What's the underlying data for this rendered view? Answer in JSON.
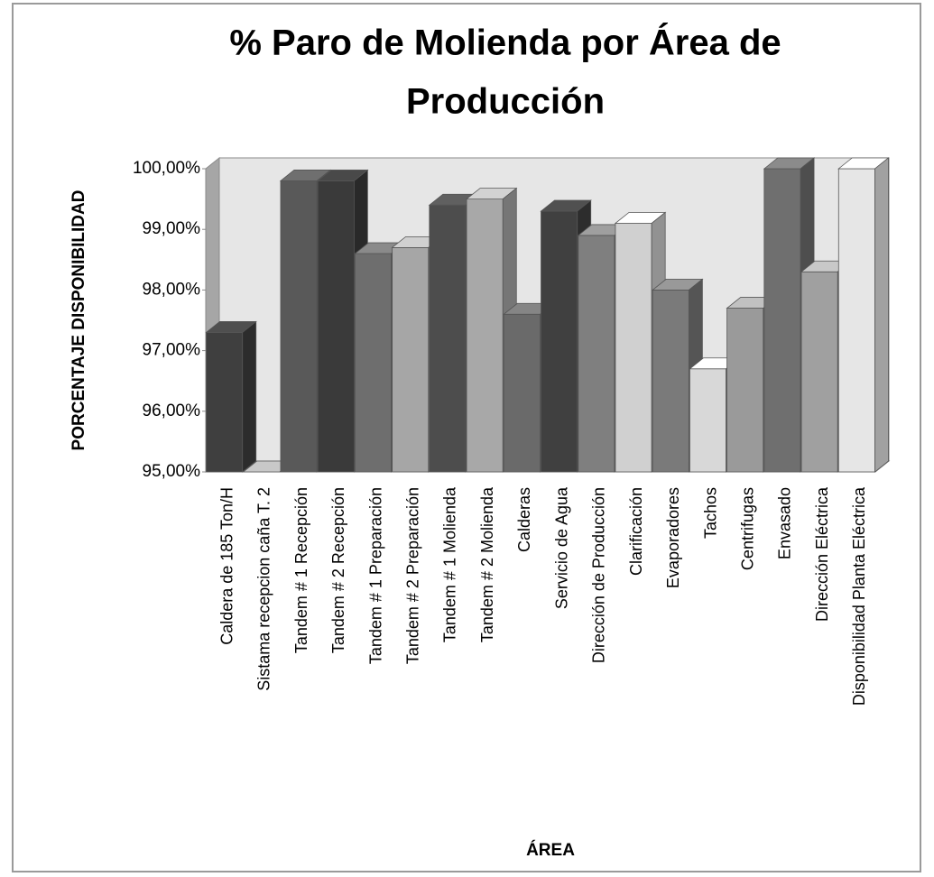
{
  "chart_data": {
    "type": "bar3d",
    "title": [
      "% Paro de Molienda por Área de",
      "Producción"
    ],
    "x_label": "ÁREA",
    "y_label": "PORCENTAJE DISPONIBILIDAD",
    "categories": [
      "Caldera de 185 Ton/H",
      "Sistama recepcion caña T. 2",
      "Tandem # 1 Recepción",
      "Tandem # 2 Recepción",
      "Tandem # 1 Preparación",
      "Tandem # 2 Preparación",
      "Tandem # 1 Molienda",
      "Tandem # 2 Molienda",
      "Calderas",
      "Servicio de Agua",
      "Dirección de Producción",
      "Clarificación",
      "Evaporadores",
      "Tachos",
      "Centrifugas",
      "Envasado",
      "Dirección Eléctrica",
      "Disponibilidad Planta Eléctrica"
    ],
    "values": [
      97.3,
      95,
      99.8,
      99.8,
      98.6,
      98.7,
      99.4,
      99.5,
      97.6,
      99.3,
      98.9,
      99.1,
      98.0,
      96.7,
      97.7,
      100,
      98.3,
      100
    ],
    "colors": [
      "#3f3f3f",
      "#a0a0a0",
      "#595959",
      "#3a3a3a",
      "#6e6e6e",
      "#a6a6a6",
      "#4d4d4d",
      "#a8a8a8",
      "#6a6a6a",
      "#404040",
      "#7f7f7f",
      "#d0d0d0",
      "#7a7a7a",
      "#d8d8d8",
      "#9a9a9a",
      "#6f6f6f",
      "#a0a0a0",
      "#e6e6e6"
    ],
    "ylim": [
      95,
      100
    ],
    "yticks": [
      {
        "value": 95,
        "label": "95,00%"
      },
      {
        "value": 96,
        "label": "96,00%"
      },
      {
        "value": 97,
        "label": "97,00%"
      },
      {
        "value": 98,
        "label": "98,00%"
      },
      {
        "value": 99,
        "label": "99,00%"
      },
      {
        "value": 100,
        "label": "100,00%"
      }
    ],
    "grid": false
  }
}
